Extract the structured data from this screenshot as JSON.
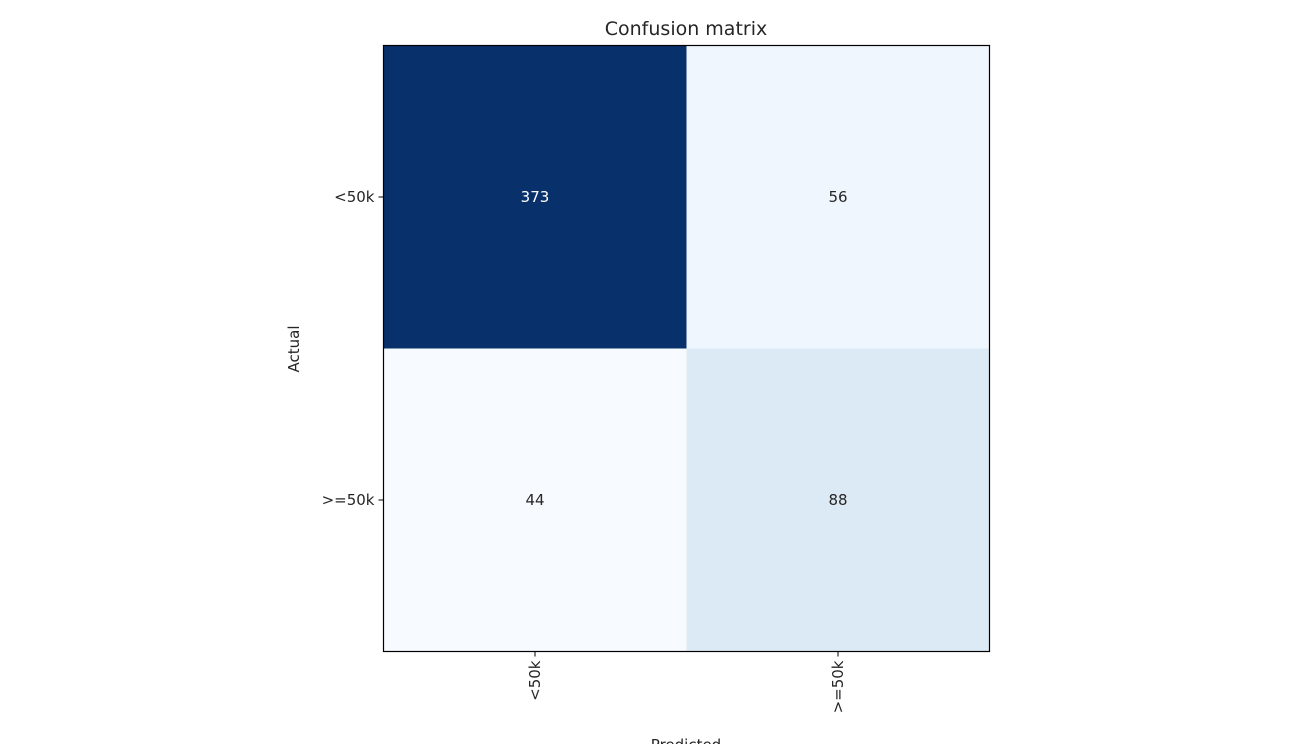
{
  "chart_data": {
    "type": "heatmap",
    "title": "Confusion matrix",
    "xlabel": "Predicted",
    "ylabel": "Actual",
    "x_categories": [
      "<50k",
      ">=50k"
    ],
    "y_categories": [
      "<50k",
      ">=50k"
    ],
    "values": [
      [
        373,
        56
      ],
      [
        44,
        88
      ]
    ],
    "colormap": "Blues",
    "colorbar": false,
    "grid": false,
    "cell_text_colors": {
      "dark": "#ffffff",
      "light": "#262626"
    }
  }
}
